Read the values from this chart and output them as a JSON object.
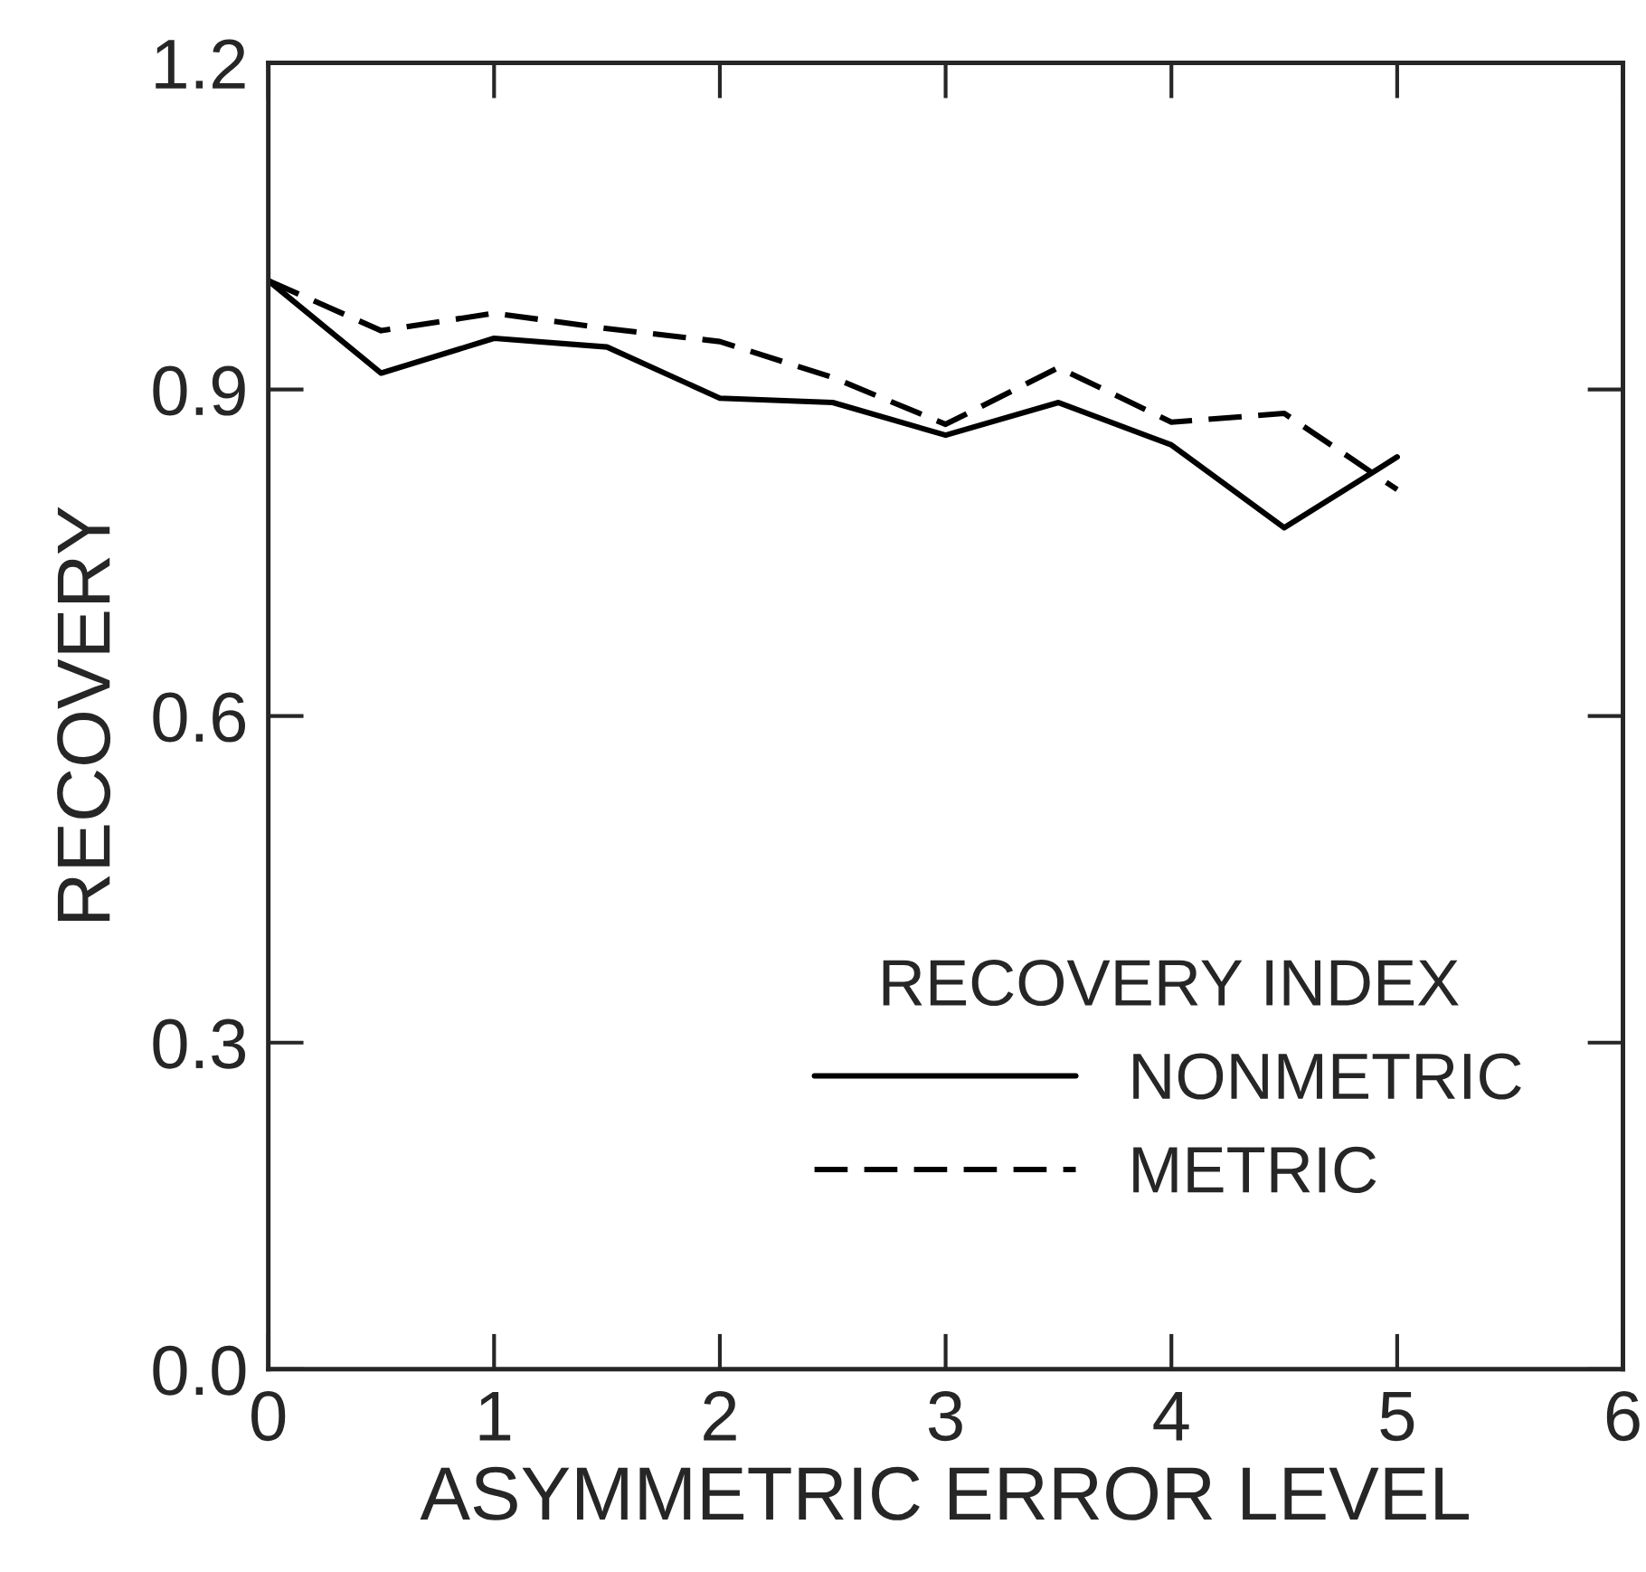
{
  "chart_data": {
    "type": "line",
    "xlabel": "ASYMMETRIC ERROR LEVEL",
    "ylabel": "RECOVERY",
    "legend_title": "RECOVERY INDEX",
    "x": [
      0,
      0.5,
      1,
      1.5,
      2,
      2.5,
      3,
      3.5,
      4,
      4.5,
      5
    ],
    "series": [
      {
        "name": "NONMETRIC",
        "color": "#000000",
        "line_style": "solid",
        "values": [
          1.0,
          0.915,
          0.947,
          0.939,
          0.892,
          0.888,
          0.858,
          0.888,
          0.849,
          0.773,
          0.838
        ]
      },
      {
        "name": "METRIC",
        "color": "#000000",
        "line_style": "dashed",
        "values": [
          1.0,
          0.954,
          0.97,
          0.956,
          0.944,
          0.911,
          0.868,
          0.92,
          0.87,
          0.878,
          0.808
        ]
      }
    ],
    "xlim": [
      0,
      6
    ],
    "xticks": [
      0,
      1,
      2,
      3,
      4,
      5,
      6
    ],
    "ylim": [
      0,
      1.2
    ],
    "yticks": [
      {
        "value": 0,
        "label": "0.0"
      },
      {
        "value": 0.3,
        "label": "0.3"
      },
      {
        "value": 0.6,
        "label": "0.6"
      },
      {
        "value": 0.9,
        "label": "0.9"
      },
      {
        "value": 1.2,
        "label": "1.2"
      }
    ],
    "grid": false,
    "legend": "lower right",
    "marker": "none"
  }
}
